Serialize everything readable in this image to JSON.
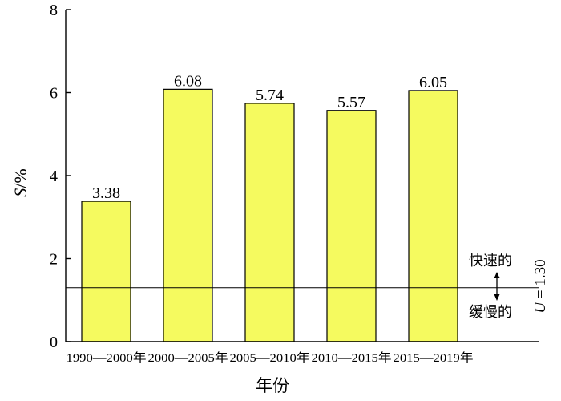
{
  "chart_data": {
    "type": "bar",
    "categories": [
      "1990—2000年",
      "2000—2005年",
      "2005—2010年",
      "2010—2015年",
      "2015—2019年"
    ],
    "series": [
      {
        "values": [
          3.38,
          6.08,
          5.74,
          5.57,
          6.05
        ],
        "color": "#f5fa5f"
      }
    ],
    "data_labels": [
      "3.38",
      "6.08",
      "5.74",
      "5.57",
      "6.05"
    ],
    "xlabel": "年份",
    "ylabel_italic": "S",
    "ylabel_rest": "/%",
    "ylim": [
      0,
      8
    ],
    "yticks": [
      0,
      2,
      4,
      6,
      8
    ],
    "grid": false,
    "threshold": {
      "value": 1.3,
      "label": "U = 1.30",
      "label_italic": "U",
      "label_rest": " = 1.30",
      "above_label": "快速的",
      "below_label": "缓慢的"
    }
  }
}
